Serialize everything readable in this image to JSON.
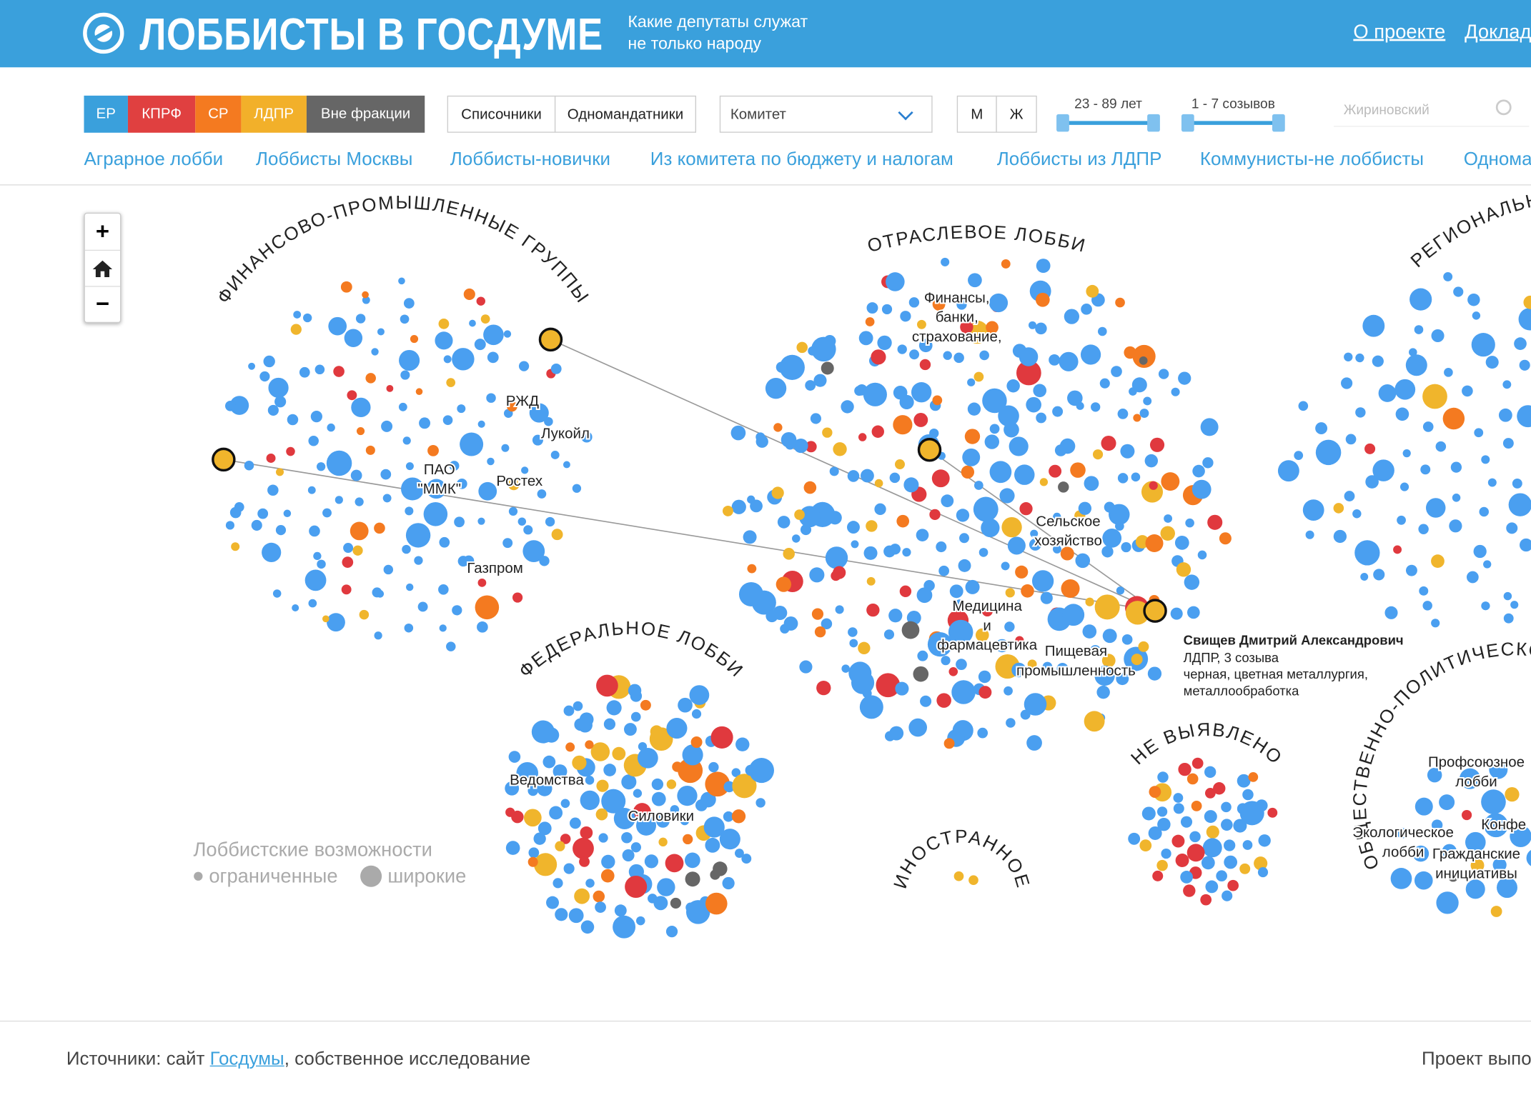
{
  "header": {
    "title": "ЛОББИСТЫ В ГОСДУМЕ",
    "subtitle": [
      "Какие депутаты служат",
      "не только народу"
    ],
    "links": [
      "О проекте",
      "Доклад"
    ]
  },
  "filters": {
    "parties": [
      "ЕР",
      "КПРФ",
      "СР",
      "ЛДПР",
      "Вне фракции"
    ],
    "list_types": [
      "Списочники",
      "Одномандатники"
    ],
    "committee": "Комитет",
    "gender": [
      "М",
      "Ж"
    ],
    "age_range": "23 - 89 лет",
    "convocations": "1 - 7 созывов",
    "search_placeholder": "Жириновский"
  },
  "quick_filters": [
    "Аграрное лобби",
    "Лоббисты Москвы",
    "Лоббисты-новички",
    "Из комитета по бюджету и налогам",
    "Лоббисты из ЛДПР",
    "Коммунисты-не лоббисты",
    "Одномандатники"
  ],
  "zoom": [
    "+",
    "−"
  ],
  "groups": [
    {
      "title": "ФИНАНСОВО-ПРОМЫШЛЕННЫЕ ГРУППЫ",
      "labels": [
        [
          "РЖД"
        ],
        [
          "Лукойл"
        ],
        [
          "ПАО",
          "\"ММК\""
        ],
        [
          "Ростех"
        ],
        [
          "Газпром"
        ]
      ]
    },
    {
      "title": "ОТРАСЛЕВОЕ ЛОББИ",
      "labels": [
        [
          "Финансы,",
          "банки,",
          "страхование,"
        ],
        [
          "Сельское",
          "хозяйство"
        ],
        [
          "Медицина",
          "и",
          "фармацевтика"
        ],
        [
          "Пищевая",
          "промышленность"
        ]
      ]
    },
    {
      "title": "РЕГИОНАЛЬНОЕ ЛОББИ",
      "labels": []
    },
    {
      "title": "ФЕДЕРАЛЬНОЕ ЛОББИ",
      "labels": [
        [
          "Ведомства"
        ],
        [
          "Силовики"
        ]
      ]
    },
    {
      "title": "НЕ ВЫЯВЛЕНО",
      "labels": []
    },
    {
      "title": "ИНОСТРАННОЕ",
      "labels": []
    },
    {
      "title": "ОБЩЕСТВЕННО-ПОЛИТИЧЕСКОЕ ЛОББИ",
      "labels": [
        [
          "Профсоюзное",
          "лобби"
        ],
        [
          "Экологическое",
          "лобби"
        ],
        [
          "Конфе"
        ],
        [
          "Гражданские",
          "инициативы"
        ]
      ]
    }
  ],
  "legend": {
    "title": "Лоббистские возможности",
    "limited": "ограниченные",
    "wide": "широкие"
  },
  "tooltip": {
    "name": "Свищев Дмитрий Александрович",
    "party": "ЛДПР, 3 созыва",
    "industry": [
      "черная, цветная металлургия,",
      "металлообработка"
    ]
  },
  "footer": {
    "source_prefix": "Источники: сайт",
    "source_link": "Госдумы",
    "source_suffix": ", собственное исследование",
    "credit": "Проект выпо"
  }
}
